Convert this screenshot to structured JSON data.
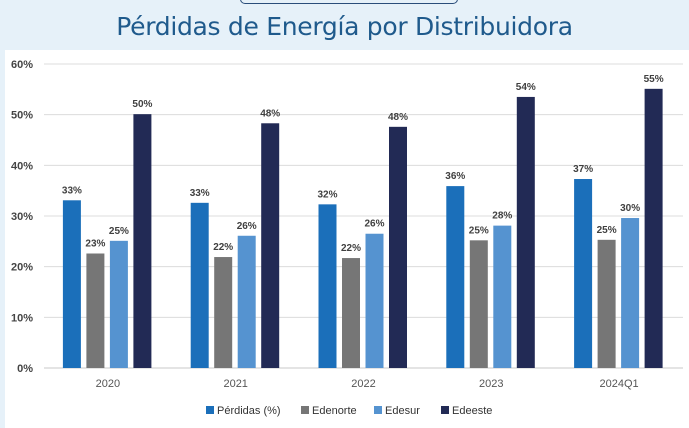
{
  "title": "Pérdidas de Energía por Distribuidora",
  "chart_data": {
    "type": "bar",
    "title": "Pérdidas de Energía por Distribuidora",
    "categories": [
      "2020",
      "2021",
      "2022",
      "2023",
      "2024Q1"
    ],
    "series": [
      {
        "name": "Pérdidas (%)",
        "color": "#1b6fba",
        "values": [
          33.1,
          32.6,
          32.3,
          35.9,
          37.3
        ],
        "labels": [
          "33%",
          "33%",
          "32%",
          "36%",
          "37%"
        ]
      },
      {
        "name": "Edenorte",
        "color": "#767676",
        "values": [
          22.6,
          21.9,
          21.7,
          25.2,
          25.3
        ],
        "labels": [
          "23%",
          "22%",
          "22%",
          "25%",
          "25%"
        ]
      },
      {
        "name": "Edesur",
        "color": "#5593d0",
        "values": [
          25.1,
          26.1,
          26.5,
          28.1,
          29.6
        ],
        "labels": [
          "25%",
          "26%",
          "26%",
          "28%",
          "30%"
        ]
      },
      {
        "name": "Edeeste",
        "color": "#222a55",
        "values": [
          50.1,
          48.3,
          47.6,
          53.5,
          55.1
        ],
        "labels": [
          "50%",
          "48%",
          "48%",
          "54%",
          "55%"
        ]
      }
    ],
    "ylim": [
      0,
      60
    ],
    "yticks": [
      "0%",
      "10%",
      "20%",
      "30%",
      "40%",
      "50%",
      "60%"
    ],
    "grid": true,
    "legend": "bottom"
  }
}
